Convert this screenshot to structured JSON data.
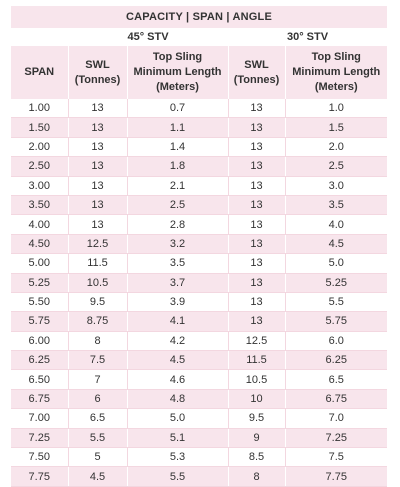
{
  "title": "CAPACITY | SPAN | ANGLE",
  "angles": {
    "left": "45° STV",
    "right": "30° STV"
  },
  "headers": {
    "span": "SPAN",
    "swl_45": "SWL\n(Tonnes)",
    "len_45": "Top Sling\nMinimum Length\n(Meters)",
    "swl_30": "SWL\n(Tonnes)",
    "len_30": "Top Sling\nMinimum Length\n(Meters)"
  },
  "rows": [
    [
      "1.00",
      "13",
      "0.7",
      "13",
      "1.0"
    ],
    [
      "1.50",
      "13",
      "1.1",
      "13",
      "1.5"
    ],
    [
      "2.00",
      "13",
      "1.4",
      "13",
      "2.0"
    ],
    [
      "2.50",
      "13",
      "1.8",
      "13",
      "2.5"
    ],
    [
      "3.00",
      "13",
      "2.1",
      "13",
      "3.0"
    ],
    [
      "3.50",
      "13",
      "2.5",
      "13",
      "3.5"
    ],
    [
      "4.00",
      "13",
      "2.8",
      "13",
      "4.0"
    ],
    [
      "4.50",
      "12.5",
      "3.2",
      "13",
      "4.5"
    ],
    [
      "5.00",
      "11.5",
      "3.5",
      "13",
      "5.0"
    ],
    [
      "5.25",
      "10.5",
      "3.7",
      "13",
      "5.25"
    ],
    [
      "5.50",
      "9.5",
      "3.9",
      "13",
      "5.5"
    ],
    [
      "5.75",
      "8.75",
      "4.1",
      "13",
      "5.75"
    ],
    [
      "6.00",
      "8",
      "4.2",
      "12.5",
      "6.0"
    ],
    [
      "6.25",
      "7.5",
      "4.5",
      "11.5",
      "6.25"
    ],
    [
      "6.50",
      "7",
      "4.6",
      "10.5",
      "6.5"
    ],
    [
      "6.75",
      "6",
      "4.8",
      "10",
      "6.75"
    ],
    [
      "7.00",
      "6.5",
      "5.0",
      "9.5",
      "7.0"
    ],
    [
      "7.25",
      "5.5",
      "5.1",
      "9",
      "7.25"
    ],
    [
      "7.50",
      "5",
      "5.3",
      "8.5",
      "7.5"
    ],
    [
      "7.75",
      "4.5",
      "5.5",
      "8",
      "7.75"
    ]
  ],
  "colors": {
    "pink": "#f8e5ec",
    "text": "#333333"
  }
}
